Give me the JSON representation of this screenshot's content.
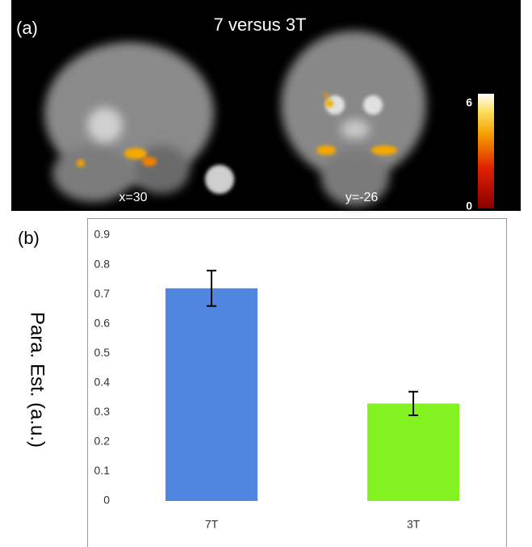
{
  "panel_a": {
    "label": "(a)",
    "title": "7 versus 3T",
    "slice_labels": [
      "x=30",
      "y=-26"
    ],
    "colorbar": {
      "lim": [
        0,
        6
      ],
      "ticks": [
        6,
        0
      ]
    }
  },
  "chart_data": {
    "type": "bar",
    "panel_label": "(b)",
    "y_label": "Para. Est. (a.u.)",
    "categories": [
      "7T",
      "3T"
    ],
    "values": [
      0.72,
      0.33
    ],
    "errors": [
      0.06,
      0.04
    ],
    "colors": [
      "#4f86df",
      "#82f221"
    ],
    "ylim": [
      0,
      0.9
    ],
    "yticks": [
      0,
      0.1,
      0.2,
      0.3,
      0.4,
      0.5,
      0.6,
      0.7,
      0.8,
      0.9
    ],
    "grid": false
  }
}
